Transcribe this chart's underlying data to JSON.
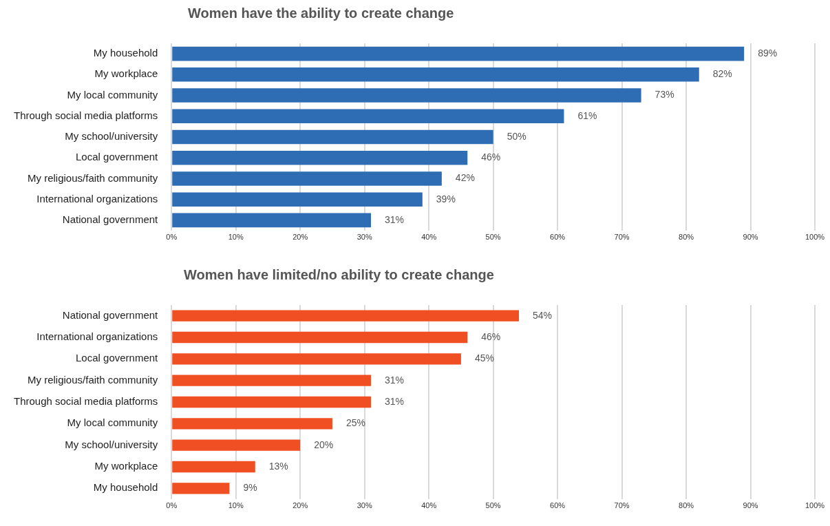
{
  "chart_data": [
    {
      "type": "bar",
      "orientation": "horizontal",
      "title": "Women have the ability to create change",
      "categories": [
        "My household",
        "My workplace",
        "My local community",
        "Through social media platforms",
        "My school/university",
        "Local government",
        "My religious/faith community",
        "International organizations",
        "National government"
      ],
      "values": [
        89,
        82,
        73,
        61,
        50,
        46,
        42,
        39,
        31
      ],
      "value_labels": [
        "89%",
        "82%",
        "73%",
        "61%",
        "50%",
        "46%",
        "42%",
        "39%",
        "31%"
      ],
      "color": "#2e6db4",
      "xlim": [
        0,
        100
      ],
      "xticks": [
        {
          "value": 0,
          "label": "0%"
        },
        {
          "value": 10,
          "label": "10%"
        },
        {
          "value": 20,
          "label": "20%"
        },
        {
          "value": 30,
          "label": "30%"
        },
        {
          "value": 40,
          "label": "40%"
        },
        {
          "value": 50,
          "label": "50%"
        },
        {
          "value": 60,
          "label": "60%"
        },
        {
          "value": 70,
          "label": "70%"
        },
        {
          "value": 80,
          "label": "80%"
        },
        {
          "value": 90,
          "label": "90%"
        },
        {
          "value": 100,
          "label": "100%"
        }
      ],
      "grid": "x"
    },
    {
      "type": "bar",
      "orientation": "horizontal",
      "title": "Women have limited/no ability to create change",
      "categories": [
        "National government",
        "International organizations",
        "Local government",
        "My religious/faith community",
        "Through social media platforms",
        "My local community",
        "My school/university",
        "My workplace",
        "My household"
      ],
      "values": [
        54,
        46,
        45,
        31,
        31,
        25,
        20,
        13,
        9
      ],
      "value_labels": [
        "54%",
        "46%",
        "45%",
        "31%",
        "31%",
        "25%",
        "20%",
        "13%",
        "9%"
      ],
      "color": "#f04e23",
      "xlim": [
        0,
        100
      ],
      "xticks": [
        {
          "value": 0,
          "label": "0%"
        },
        {
          "value": 10,
          "label": "10%"
        },
        {
          "value": 20,
          "label": "20%"
        },
        {
          "value": 30,
          "label": "30%"
        },
        {
          "value": 40,
          "label": "40%"
        },
        {
          "value": 50,
          "label": "50%"
        },
        {
          "value": 60,
          "label": "60%"
        },
        {
          "value": 70,
          "label": "70%"
        },
        {
          "value": 80,
          "label": "80%"
        },
        {
          "value": 90,
          "label": "90%"
        },
        {
          "value": 100,
          "label": "100%"
        }
      ],
      "grid": "x"
    }
  ]
}
